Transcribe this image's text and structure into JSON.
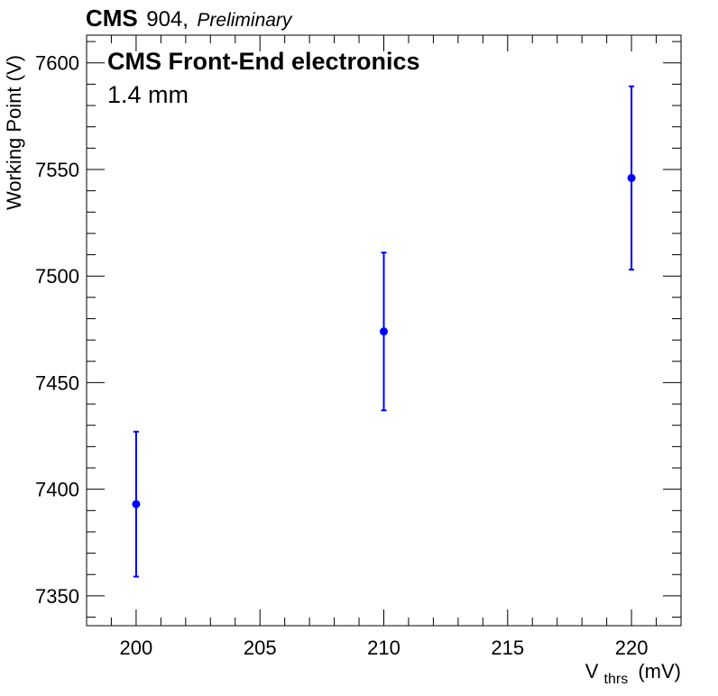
{
  "header": {
    "experiment": "CMS",
    "location": "904,",
    "status": "Preliminary"
  },
  "chart_data": {
    "type": "scatter",
    "title": "CMS Front-End electronics",
    "subtitle": "1.4 mm",
    "xlabel_main": "V",
    "xlabel_sub": "thrs",
    "xlabel_unit": "(mV)",
    "ylabel": "Working Point (V)",
    "xlim": [
      198,
      222
    ],
    "ylim": [
      7336,
      7613
    ],
    "x_ticks": [
      200,
      205,
      210,
      215,
      220
    ],
    "y_ticks": [
      7350,
      7400,
      7450,
      7500,
      7550,
      7600
    ],
    "grid": false,
    "legend": "none",
    "series": [
      {
        "color": "#0000ff",
        "points": [
          {
            "x": 200,
            "y": 7393,
            "err_low": 7359,
            "err_high": 7427
          },
          {
            "x": 210,
            "y": 7474,
            "err_low": 7437,
            "err_high": 7511
          },
          {
            "x": 220,
            "y": 7546,
            "err_low": 7503,
            "err_high": 7589
          }
        ]
      }
    ]
  }
}
